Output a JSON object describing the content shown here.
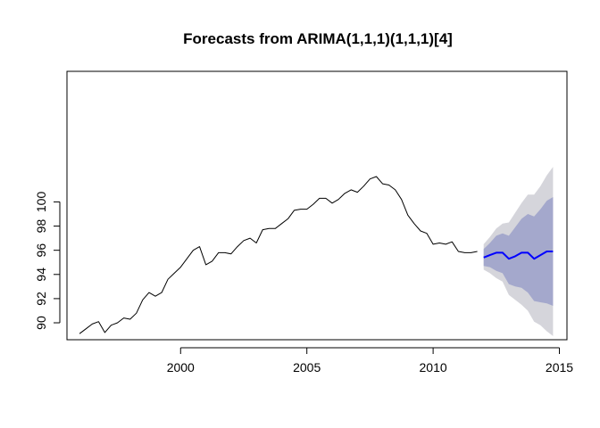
{
  "chart_data": {
    "type": "line",
    "title": "Forecasts from ARIMA(1,1,1)(1,1,1)[4]",
    "xlabel": "",
    "ylabel": "",
    "xlim": [
      1995.5,
      2015.3
    ],
    "ylim": [
      88.6,
      110.8
    ],
    "x_ticks": [
      2000,
      2005,
      2010,
      2015
    ],
    "x_tick_labels": [
      "2000",
      "2005",
      "2010",
      "2015"
    ],
    "y_ticks": [
      90,
      92,
      94,
      96,
      98,
      100
    ],
    "y_tick_labels": [
      "90",
      "92",
      "94",
      "96",
      "98",
      "100"
    ],
    "y_tick_labels_rotated": true,
    "grid": false,
    "legend": "none",
    "colors": {
      "history": "#000000",
      "forecast": "#0000ff",
      "band80": "#a4a8cc",
      "band95": "#d5d5db"
    },
    "series": [
      {
        "role": "history",
        "x": [
          1996.0,
          1996.25,
          1996.5,
          1996.75,
          1997.0,
          1997.25,
          1997.5,
          1997.75,
          1998.0,
          1998.25,
          1998.5,
          1998.75,
          1999.0,
          1999.25,
          1999.5,
          1999.75,
          2000.0,
          2000.25,
          2000.5,
          2000.75,
          2001.0,
          2001.25,
          2001.5,
          2001.75,
          2002.0,
          2002.25,
          2002.5,
          2002.75,
          2003.0,
          2003.25,
          2003.5,
          2003.75,
          2004.0,
          2004.25,
          2004.5,
          2004.75,
          2005.0,
          2005.25,
          2005.5,
          2005.75,
          2006.0,
          2006.25,
          2006.5,
          2006.75,
          2007.0,
          2007.25,
          2007.5,
          2007.75,
          2008.0,
          2008.25,
          2008.5,
          2008.75,
          2009.0,
          2009.25,
          2009.5,
          2009.75,
          2010.0,
          2010.25,
          2010.5,
          2010.75,
          2011.0,
          2011.25,
          2011.5,
          2011.75
        ],
        "values": [
          89.1,
          89.5,
          89.9,
          90.1,
          89.2,
          89.8,
          90.0,
          90.4,
          90.3,
          90.8,
          91.9,
          92.5,
          92.2,
          92.5,
          93.6,
          94.1,
          94.6,
          95.3,
          96.0,
          96.3,
          94.8,
          95.1,
          95.8,
          95.8,
          95.7,
          96.3,
          96.8,
          97.0,
          96.6,
          97.7,
          97.8,
          97.8,
          98.2,
          98.6,
          99.3,
          99.4,
          99.4,
          99.8,
          100.3,
          100.3,
          99.9,
          100.2,
          100.7,
          101.0,
          100.8,
          101.3,
          101.9,
          102.1,
          101.5,
          101.4,
          101.0,
          100.2,
          98.9,
          98.2,
          97.6,
          97.4,
          96.5,
          96.6,
          96.5,
          96.7,
          95.9,
          95.8,
          95.8,
          95.9
        ]
      },
      {
        "role": "forecast",
        "x": [
          2012.0,
          2012.25,
          2012.5,
          2012.75,
          2013.0,
          2013.25,
          2013.5,
          2013.75,
          2014.0,
          2014.25,
          2014.5,
          2014.75
        ],
        "values": [
          95.4,
          95.6,
          95.8,
          95.8,
          95.3,
          95.5,
          95.8,
          95.8,
          95.3,
          95.6,
          95.9,
          95.9
        ],
        "lo80": [
          94.7,
          94.6,
          94.3,
          94.1,
          93.2,
          93.0,
          92.9,
          92.5,
          91.8,
          91.7,
          91.6,
          91.4
        ],
        "hi80": [
          96.1,
          96.6,
          97.2,
          97.4,
          97.2,
          97.9,
          98.6,
          99.0,
          98.8,
          99.4,
          100.1,
          100.4
        ],
        "lo95": [
          94.4,
          94.1,
          93.7,
          93.4,
          92.3,
          91.9,
          91.5,
          91.0,
          90.1,
          89.8,
          89.3,
          88.9
        ],
        "hi95": [
          96.5,
          97.1,
          97.8,
          98.2,
          98.3,
          99.1,
          99.9,
          100.6,
          100.6,
          101.3,
          102.2,
          102.9
        ]
      }
    ]
  }
}
